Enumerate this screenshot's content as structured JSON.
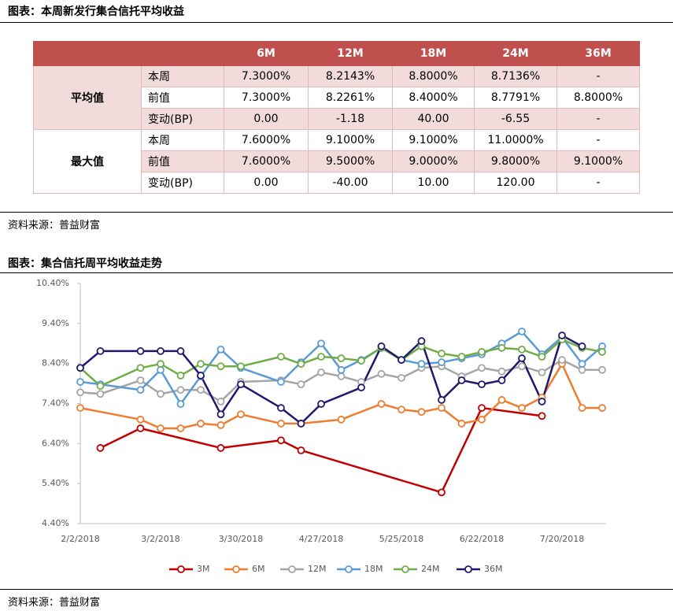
{
  "header": {
    "title": "图表：本周新发行集合信托平均收益"
  },
  "table": {
    "columns": [
      "6M",
      "12M",
      "18M",
      "24M",
      "36M"
    ],
    "groups": [
      {
        "label": "平均值",
        "rows": [
          {
            "label": "本周",
            "cells": [
              "7.3000%",
              "8.2143%",
              "8.8000%",
              "8.7136%",
              "-"
            ]
          },
          {
            "label": "前值",
            "cells": [
              "7.3000%",
              "8.2261%",
              "8.4000%",
              "8.7791%",
              "8.8000%"
            ]
          },
          {
            "label": "变动(BP)",
            "cells": [
              "0.00",
              "-1.18",
              "40.00",
              "-6.55",
              "-"
            ]
          }
        ]
      },
      {
        "label": "最大值",
        "rows": [
          {
            "label": "本周",
            "cells": [
              "7.6000%",
              "9.1000%",
              "9.1000%",
              "11.0000%",
              "-"
            ]
          },
          {
            "label": "前值",
            "cells": [
              "7.6000%",
              "9.5000%",
              "9.0000%",
              "9.8000%",
              "9.1000%"
            ]
          },
          {
            "label": "变动(BP)",
            "cells": [
              "0.00",
              "-40.00",
              "10.00",
              "120.00",
              "-"
            ]
          }
        ]
      }
    ]
  },
  "source_1": "资料来源：普益财富",
  "figure_title": "图表：集合信托周平均收益走势",
  "chart_data": {
    "type": "line",
    "categories": [
      "2/2/2018",
      null,
      null,
      null,
      "3/2/2018",
      null,
      null,
      null,
      "3/30/2018",
      null,
      null,
      null,
      "4/27/2018",
      null,
      null,
      null,
      "5/25/2018",
      null,
      null,
      null,
      "6/22/2018",
      null,
      null,
      null,
      "7/20/2018",
      null,
      null
    ],
    "series": [
      {
        "name": "3M",
        "color": "#c00000",
        "values": [
          null,
          6.29,
          null,
          6.78,
          null,
          null,
          null,
          6.29,
          null,
          null,
          6.48,
          6.23,
          null,
          null,
          null,
          null,
          null,
          null,
          5.18,
          null,
          7.29,
          null,
          null,
          7.09,
          null,
          null,
          null
        ]
      },
      {
        "name": "6M",
        "color": "#ed7d31",
        "values": [
          7.29,
          null,
          null,
          7.0,
          6.78,
          6.78,
          6.9,
          6.86,
          7.13,
          null,
          6.9,
          6.9,
          null,
          7.0,
          null,
          7.39,
          7.25,
          7.19,
          7.29,
          6.9,
          7.0,
          7.49,
          7.29,
          7.55,
          8.39,
          7.29,
          7.29
        ]
      },
      {
        "name": "12M",
        "color": "#a5a5a5",
        "values": [
          7.68,
          7.64,
          null,
          7.98,
          7.64,
          7.74,
          7.74,
          7.45,
          7.94,
          null,
          7.98,
          7.88,
          8.18,
          8.08,
          7.94,
          8.14,
          8.04,
          8.29,
          8.33,
          8.08,
          8.29,
          8.2,
          8.33,
          8.18,
          8.49,
          8.24,
          8.24
        ]
      },
      {
        "name": "18M",
        "color": "#5b9bd5",
        "values": [
          7.94,
          7.88,
          null,
          7.74,
          8.24,
          7.39,
          8.08,
          8.75,
          8.29,
          null,
          7.94,
          8.43,
          8.9,
          8.24,
          8.49,
          8.79,
          8.49,
          8.39,
          8.43,
          8.53,
          8.63,
          8.9,
          9.2,
          8.63,
          9.06,
          8.39,
          8.83
        ]
      },
      {
        "name": "24M",
        "color": "#70ad47",
        "values": [
          8.29,
          7.84,
          null,
          8.29,
          8.39,
          8.1,
          8.39,
          8.33,
          8.33,
          null,
          8.57,
          8.39,
          8.57,
          8.53,
          8.47,
          8.79,
          8.49,
          8.83,
          8.65,
          8.57,
          8.69,
          8.79,
          8.75,
          8.57,
          9.0,
          8.79,
          8.69
        ]
      },
      {
        "name": "36M",
        "color": "#1f1a6e",
        "values": [
          8.29,
          8.71,
          null,
          8.71,
          8.71,
          8.71,
          8.1,
          7.13,
          7.88,
          null,
          7.29,
          6.9,
          7.39,
          null,
          7.8,
          8.83,
          8.49,
          8.96,
          7.49,
          7.98,
          7.88,
          7.98,
          8.53,
          7.45,
          9.1,
          8.83,
          null
        ]
      }
    ],
    "ylim": [
      4.4,
      10.4
    ],
    "yticks": [
      {
        "value": 4.4,
        "label": "4.40%"
      },
      {
        "value": 5.4,
        "label": "5.40%"
      },
      {
        "value": 6.4,
        "label": "6.40%"
      },
      {
        "value": 7.4,
        "label": "7.40%"
      },
      {
        "value": 8.4,
        "label": "8.40%"
      },
      {
        "value": 9.4,
        "label": "9.40%"
      },
      {
        "value": 10.4,
        "label": "10.40%"
      }
    ],
    "grid": false,
    "legend": "bottom"
  },
  "source_2": "资料来源：普益财富"
}
